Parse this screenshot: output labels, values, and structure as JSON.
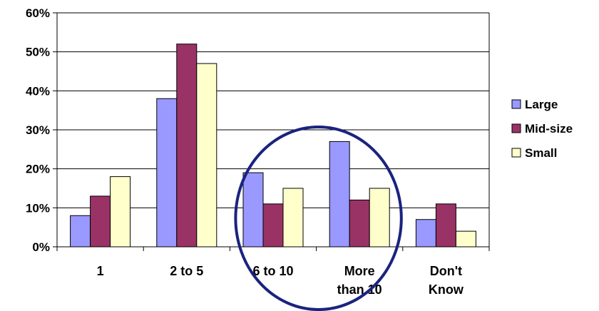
{
  "chart_data": {
    "type": "bar",
    "categories": [
      [
        "1"
      ],
      [
        "2 to 5"
      ],
      [
        "6 to 10"
      ],
      [
        "More",
        "than 10"
      ],
      [
        "Don't",
        "Know"
      ]
    ],
    "series": [
      {
        "name": "Large",
        "color": "#9999ff",
        "values": [
          8,
          38,
          19,
          27,
          7
        ]
      },
      {
        "name": "Mid-size",
        "color": "#993366",
        "values": [
          13,
          52,
          11,
          12,
          11
        ]
      },
      {
        "name": "Small",
        "color": "#ffffcc",
        "values": [
          18,
          47,
          15,
          15,
          4
        ]
      }
    ],
    "y_ticks": [
      "0%",
      "10%",
      "20%",
      "30%",
      "40%",
      "50%",
      "60%"
    ],
    "ylim": [
      0,
      60
    ],
    "grid": true,
    "legend_position": "right",
    "annotation": {
      "shape": "ellipse",
      "color": "#1a237e",
      "highlights": [
        "6 to 10",
        "More than 10"
      ]
    }
  }
}
